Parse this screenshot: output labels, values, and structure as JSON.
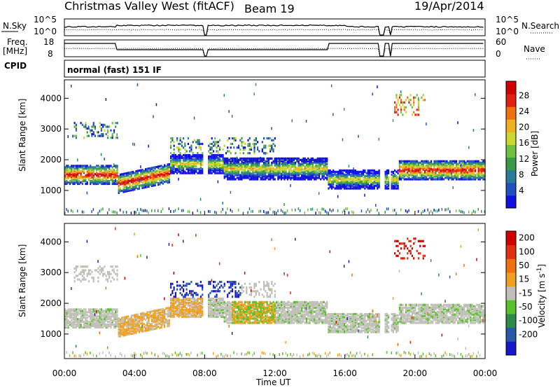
{
  "header": {
    "title": "Christmas Valley West (fitACF)",
    "beam": "Beam 19",
    "date": "19/Apr/2014"
  },
  "top_panels": {
    "nsky_label": "N.Sky",
    "nsky_ticks": [
      "10^5",
      "10^0"
    ],
    "nsearch_label": "N.Search",
    "nsearch_ticks": [
      "10^5",
      "10^0"
    ],
    "freq_label": "Freq.",
    "freq_unit": "[MHz]",
    "freq_ticks": [
      "18",
      "8"
    ],
    "nave_label": "Nave",
    "nave_ticks": [
      "60",
      "0"
    ],
    "cpid_label": "CPID",
    "cpid_value": "normal (fast) 151 IF"
  },
  "chart_data": [
    {
      "type": "heatmap",
      "name": "power",
      "ylabel": "Slant Range [km]",
      "yticks": [
        "1000",
        "2000",
        "3000",
        "4000"
      ],
      "ylim": [
        200,
        4600
      ],
      "xlim": [
        0,
        24
      ],
      "colorbar": {
        "label": "Power [dB]",
        "ticks": [
          "4",
          "8",
          "12",
          "16",
          "20",
          "24",
          "28"
        ],
        "colors": [
          "#1010e0",
          "#2050c0",
          "#2a7a9a",
          "#3a9a4a",
          "#70c040",
          "#c8d830",
          "#f0b020",
          "#f07010",
          "#e02010",
          "#d00000"
        ]
      }
    },
    {
      "type": "heatmap",
      "name": "velocity",
      "ylabel": "Slant Range [km]",
      "yticks": [
        "1000",
        "2000",
        "3000",
        "4000"
      ],
      "ylim": [
        200,
        4600
      ],
      "xlim": [
        0,
        24
      ],
      "xlabel": "Time UT",
      "xticks": [
        "00:00",
        "04:00",
        "08:00",
        "12:00",
        "16:00",
        "20:00",
        "00:00"
      ],
      "colorbar": {
        "label": "Velocity [m s^-1]",
        "ticks": [
          "200",
          "100",
          "50",
          "15",
          "-15",
          "-50",
          "-100",
          "-200"
        ],
        "colors": [
          "#1818c8",
          "#2a58a8",
          "#2e8a48",
          "#58c028",
          "#c0c0b8",
          "#f0a020",
          "#f07010",
          "#e03010",
          "#d00000"
        ]
      }
    }
  ]
}
